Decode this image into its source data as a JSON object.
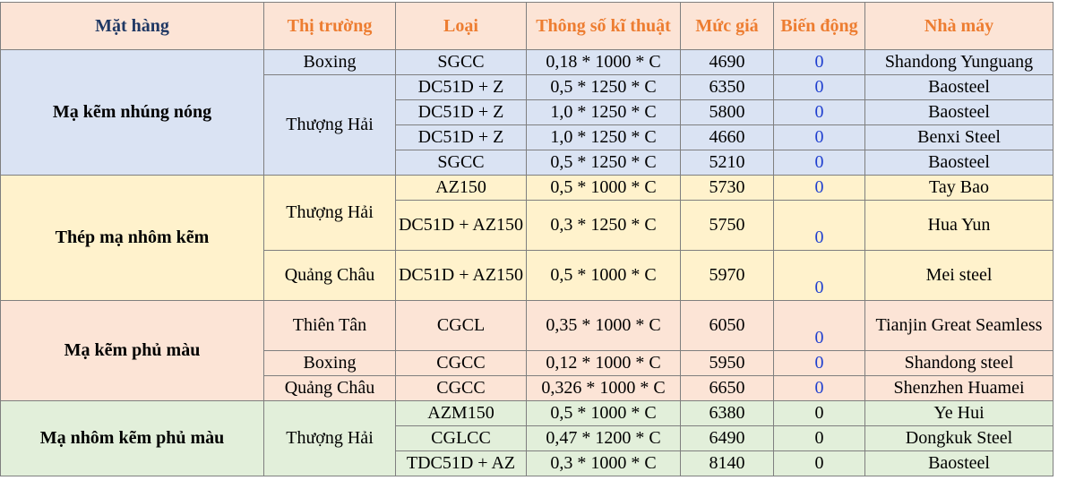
{
  "headers": {
    "product": "Mặt hàng",
    "market": "Thị trường",
    "type": "Loại",
    "spec": "Thông số kĩ thuật",
    "price": "Mức giá",
    "change": "Biến động",
    "factory": "Nhà máy"
  },
  "groups": [
    {
      "product": "Mạ kẽm nhúng nóng",
      "markets": [
        "Boxing",
        "Thượng Hải"
      ],
      "rows": [
        {
          "type": "SGCC",
          "spec": "0,18 * 1000 * C",
          "price": "4690",
          "change": "0",
          "factory": "Shandong Yunguang"
        },
        {
          "type": "DC51D + Z",
          "spec": "0,5 * 1250 * C",
          "price": "6350",
          "change": "0",
          "factory": "Baosteel"
        },
        {
          "type": "DC51D + Z",
          "spec": "1,0 * 1250 * C",
          "price": "5800",
          "change": "0",
          "factory": "Baosteel"
        },
        {
          "type": "DC51D + Z",
          "spec": "1,0 * 1250 * C",
          "price": "4660",
          "change": "0",
          "factory": "Benxi Steel"
        },
        {
          "type": "SGCC",
          "spec": "0,5 * 1250 * C",
          "price": "5210",
          "change": "0",
          "factory": "Baosteel"
        }
      ]
    },
    {
      "product": "Thép mạ nhôm kẽm",
      "markets": [
        "Thượng Hải",
        "Quảng Châu"
      ],
      "rows": [
        {
          "type": "AZ150",
          "spec": "0,5 * 1000 * C",
          "price": "5730",
          "change": "0",
          "factory": "Tay Bao"
        },
        {
          "type": "DC51D + AZ150",
          "spec": "0,3 * 1250 * C",
          "price": "5750",
          "change": "0",
          "factory": "Hua Yun"
        },
        {
          "type": "DC51D + AZ150",
          "spec": "0,5 * 1000 * C",
          "price": "5970",
          "change": "0",
          "factory": "Mei steel"
        }
      ]
    },
    {
      "product": "Mạ kẽm phủ màu",
      "markets": [
        "Thiên Tân",
        "Boxing",
        "Quảng Châu"
      ],
      "rows": [
        {
          "type": "CGCL",
          "spec": "0,35 * 1000 * C",
          "price": "6050",
          "change": "0",
          "factory": "Tianjin Great Seamless"
        },
        {
          "type": "CGCC",
          "spec": "0,12 * 1000 * C",
          "price": "5950",
          "change": "0",
          "factory": "Shandong steel"
        },
        {
          "type": "CGCC",
          "spec": "0,326 * 1000 * C",
          "price": "6650",
          "change": "0",
          "factory": "Shenzhen Huamei"
        }
      ]
    },
    {
      "product": "Mạ nhôm kẽm phủ màu",
      "markets": [
        "Thượng Hải"
      ],
      "rows": [
        {
          "type": "AZM150",
          "spec": "0,5 * 1000 * C",
          "price": "6380",
          "change": "0",
          "factory": "Ye Hui"
        },
        {
          "type": "CGLCC",
          "spec": "0,47 * 1200 * C",
          "price": "6490",
          "change": "0",
          "factory": "Dongkuk Steel"
        },
        {
          "type": "TDC51D + AZ",
          "spec": "0,3 * 1000 * C",
          "price": "8140",
          "change": "0",
          "factory": "Baosteel"
        }
      ]
    }
  ]
}
